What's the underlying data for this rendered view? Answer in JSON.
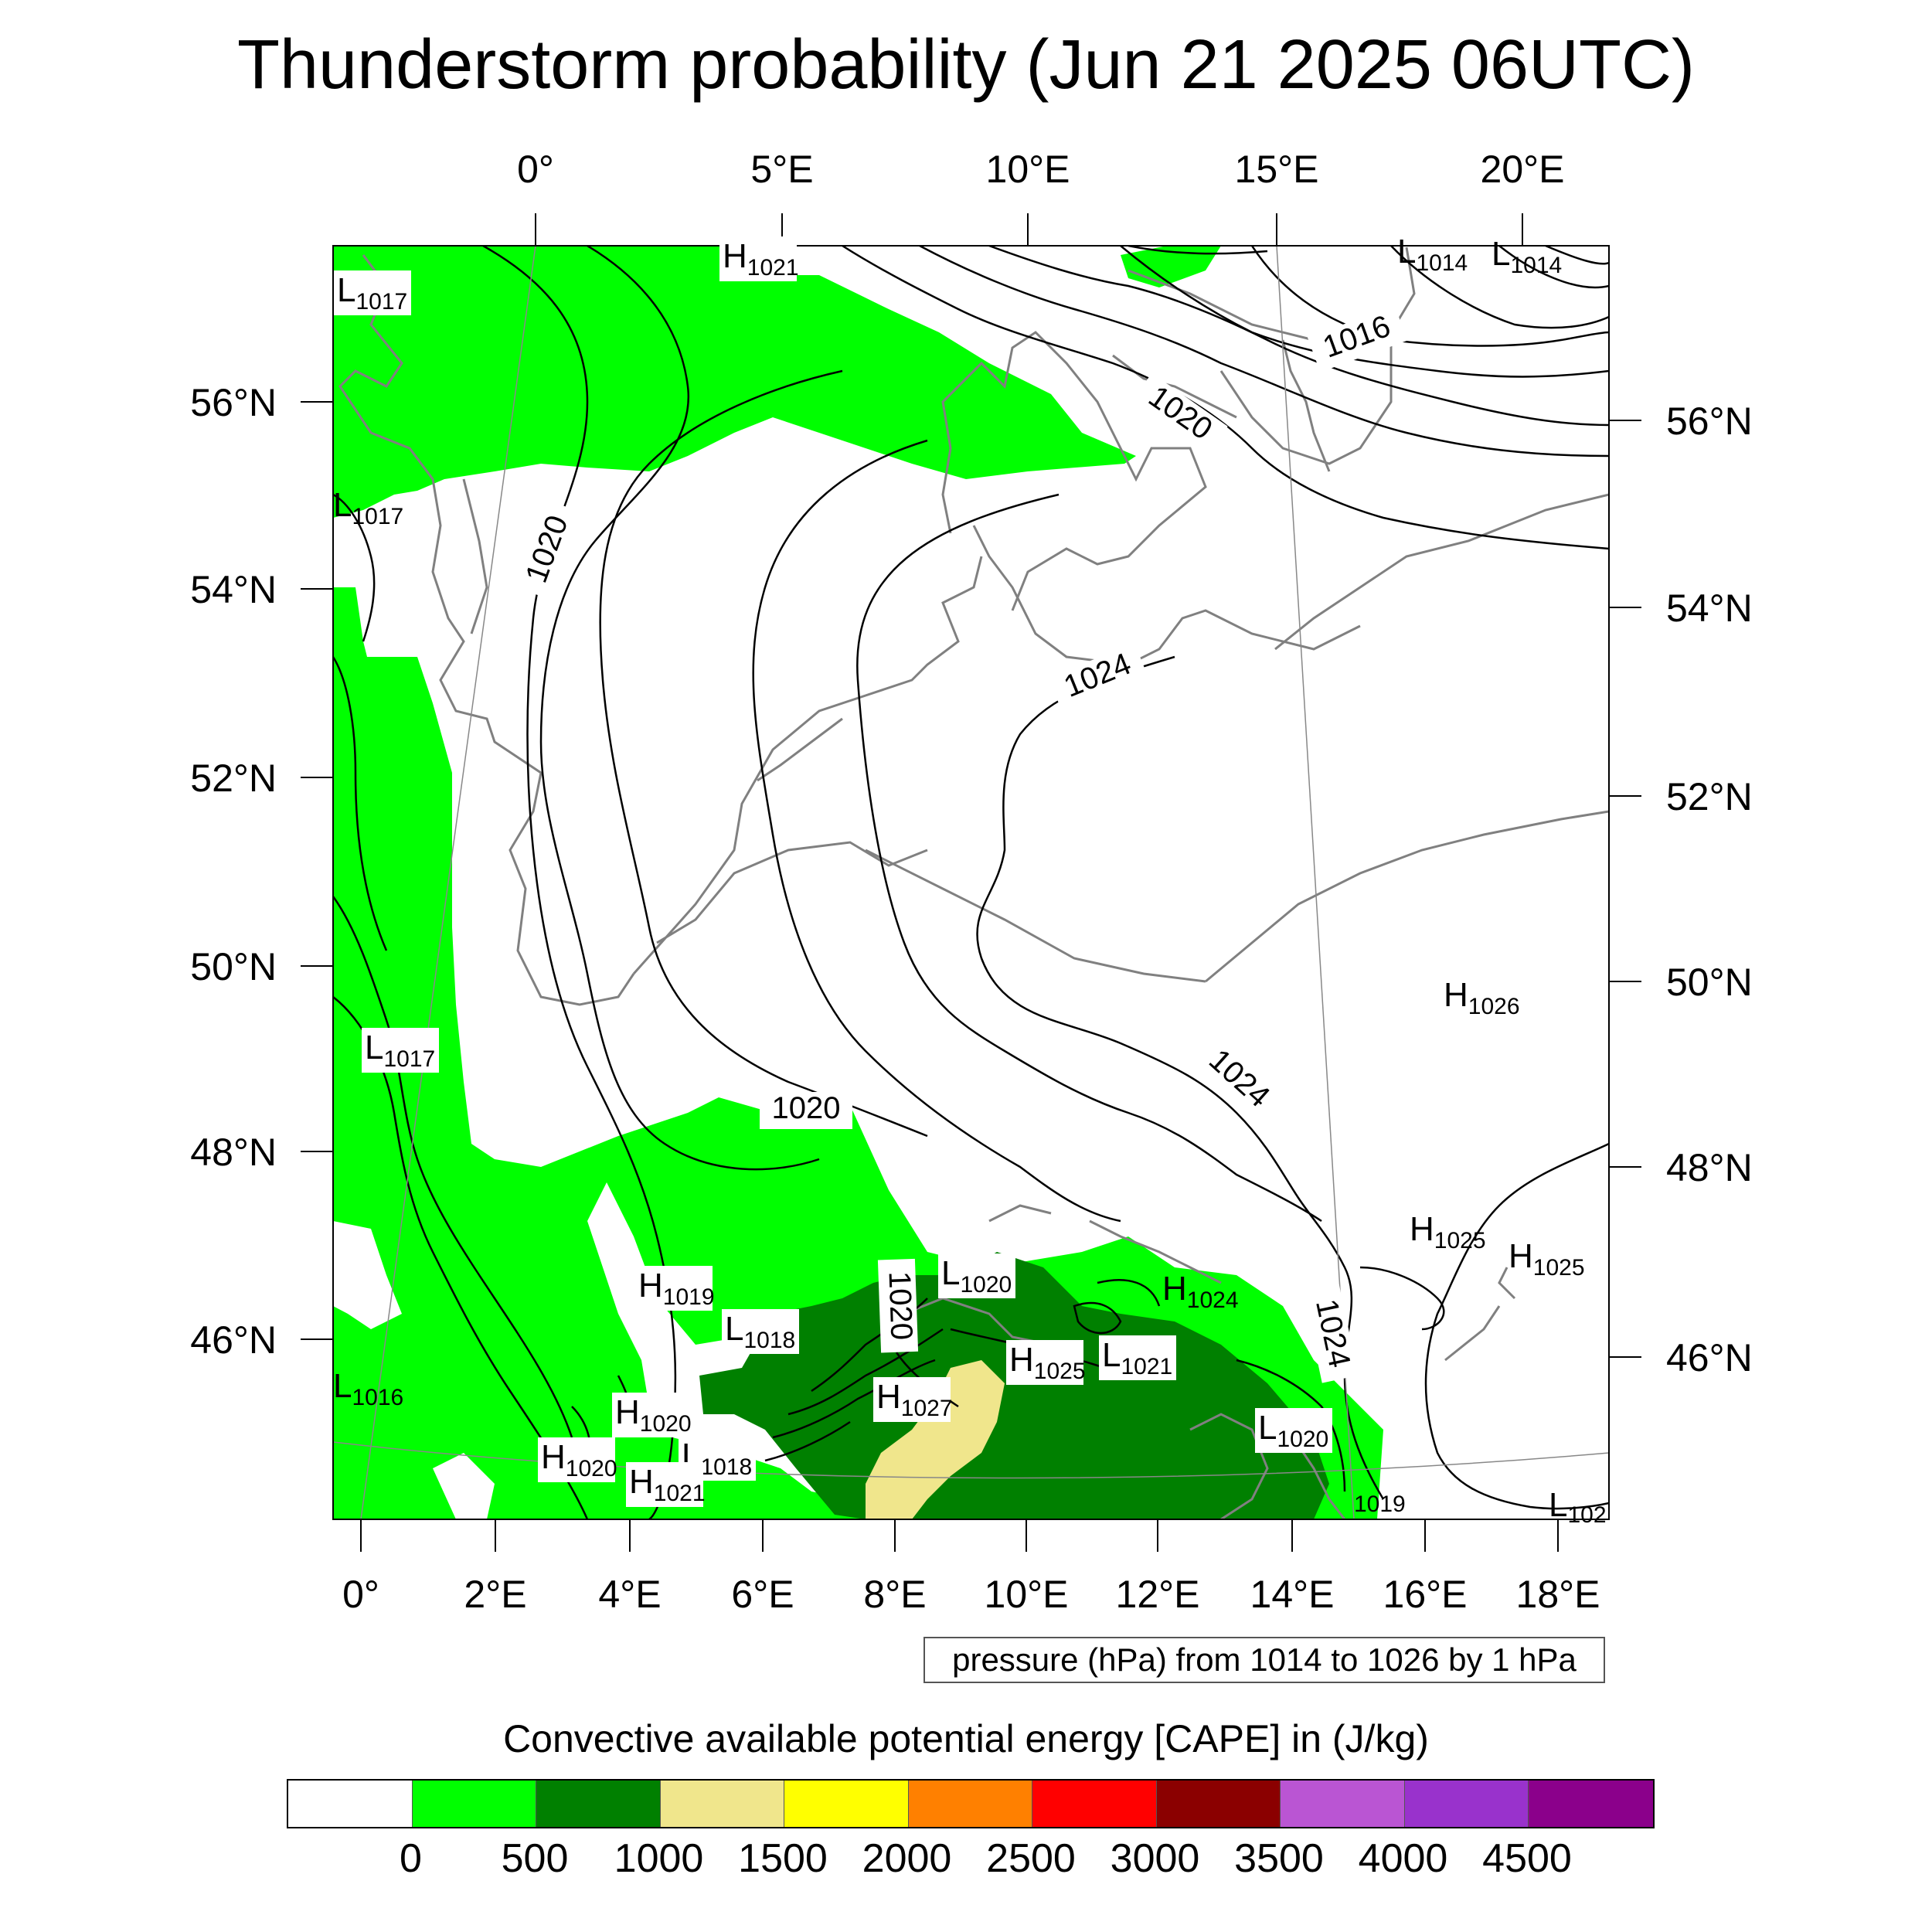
{
  "title": "Thunderstorm probability (Jun 21 2025 06UTC)",
  "map": {
    "top_lon_labels": [
      "0°",
      "5°E",
      "10°E",
      "15°E",
      "20°E"
    ],
    "bottom_lon_labels": [
      "0°",
      "2°E",
      "4°E",
      "6°E",
      "8°E",
      "10°E",
      "12°E",
      "14°E",
      "16°E",
      "18°E"
    ],
    "left_lat_labels": [
      "56°N",
      "54°N",
      "52°N",
      "50°N",
      "48°N",
      "46°N"
    ],
    "right_lat_labels": [
      "56°N",
      "54°N",
      "52°N",
      "50°N",
      "48°N",
      "46°N"
    ],
    "isobar_labels": [
      "1016",
      "1020",
      "1020",
      "1024",
      "1024",
      "1020",
      "1020",
      "1024"
    ],
    "pressure_centers": [
      {
        "type": "H",
        "value": "1021"
      },
      {
        "type": "L",
        "value": "1014"
      },
      {
        "type": "L",
        "value": "1014"
      },
      {
        "type": "L",
        "value": "1017"
      },
      {
        "type": "L",
        "value": "1017"
      },
      {
        "type": "L",
        "value": "1017"
      },
      {
        "type": "H",
        "value": "1026"
      },
      {
        "type": "H",
        "value": "1025"
      },
      {
        "type": "H",
        "value": "1025"
      },
      {
        "type": "L",
        "value": "1020"
      },
      {
        "type": "H",
        "value": "1024"
      },
      {
        "type": "H",
        "value": "1019"
      },
      {
        "type": "L",
        "value": "1018"
      },
      {
        "type": "H",
        "value": "1025"
      },
      {
        "type": "L",
        "value": "1021"
      },
      {
        "type": "H",
        "value": "1027"
      },
      {
        "type": "L",
        "value": "1016"
      },
      {
        "type": "H",
        "value": "1020"
      },
      {
        "type": "L",
        "value": "1018"
      },
      {
        "type": "H",
        "value": "1020"
      },
      {
        "type": "H",
        "value": "1021"
      },
      {
        "type": "L",
        "value": "1020"
      },
      {
        "type": "",
        "value": "1019"
      },
      {
        "type": "L",
        "value": "102"
      }
    ],
    "colors": {
      "cape_0_500": "#00ff00",
      "cape_500_1000": "#008000",
      "cape_1000_1500": "#f0e68c",
      "coastline": "#808080",
      "isobar": "#000000"
    }
  },
  "pressure_note": "pressure (hPa) from 1014 to 1026 by 1 hPa",
  "colorbar": {
    "title": "Convective available potential energy [CAPE] in (J/kg)",
    "colors": [
      "#ffffff",
      "#00ff00",
      "#008000",
      "#f0e68c",
      "#ffff00",
      "#ff8000",
      "#ff0000",
      "#8b0000",
      "#ba55d3",
      "#9932cc",
      "#8b008b"
    ],
    "labels": [
      "0",
      "500",
      "1000",
      "1500",
      "2000",
      "2500",
      "3000",
      "3500",
      "4000",
      "4500"
    ]
  }
}
